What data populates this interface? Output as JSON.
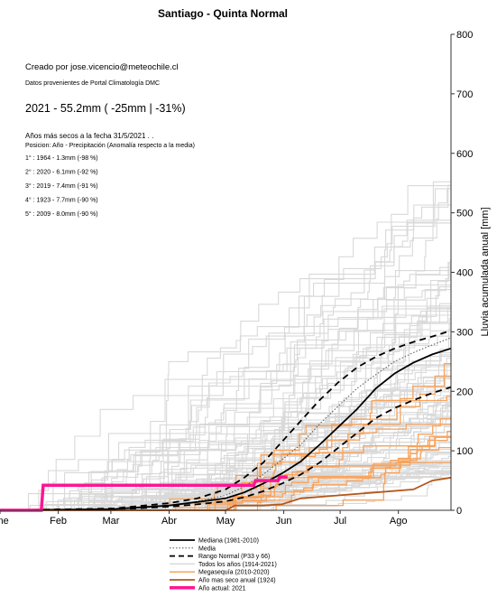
{
  "title": "Santiago - Quinta Normal",
  "credit": "Creado por jose.vicencio@meteochile.cl",
  "source": "Datos provenientes de Portal Climatología DMC",
  "headline": "2021 - 55.2mm ( -25mm |  -31%)",
  "ranking": {
    "heading": "Años más secos a la fecha 31/5/2021 . .",
    "subheading": "Posicion: Año - Precipitación (Anomalía respecto a la media)",
    "entries": [
      "1° : 1964 - 1.3mm (-98 %)",
      "2° : 2020 - 6.1mm (-92 %)",
      "3° : 2019 - 7.4mm (-91 %)",
      "4° : 1923 - 7.7mm (-90 %)",
      "5° : 2009 - 8.0mm (-90 %)"
    ]
  },
  "colors": {
    "median": "#000000",
    "mean": "#555555",
    "normal_range": "#000000",
    "all_years": "#d9d9d9",
    "megadrought": "#f7a35c",
    "driest_year": "#b5571a",
    "current_year": "#ff1493"
  },
  "chart_data": {
    "type": "line",
    "xlabel": "",
    "ylabel": "Lluvia acumulada anual [mm]",
    "x_ticks": [
      "Ene",
      "Feb",
      "Mar",
      "Abr",
      "May",
      "Jun",
      "Jul",
      "Ago"
    ],
    "x_tick_days": [
      0,
      31,
      59,
      90,
      120,
      151,
      181,
      212
    ],
    "xlim": [
      0,
      240
    ],
    "ylim": [
      0,
      800
    ],
    "y_ticks": [
      0,
      100,
      200,
      300,
      400,
      500,
      600,
      700,
      800
    ],
    "y_axis_position": "right",
    "grid": false,
    "legend_position": "bottom",
    "legend": [
      {
        "key": "median",
        "label": "Mediana (1981-2010)"
      },
      {
        "key": "mean",
        "label": "Media"
      },
      {
        "key": "normal_range",
        "label": "Rango Normal (P33 y 66)"
      },
      {
        "key": "all_years",
        "label": "Todos los años (1914-2021)"
      },
      {
        "key": "megadrought",
        "label": "Megasequía (2010-2020)"
      },
      {
        "key": "driest_year",
        "label": "Año mas seco anual (1924)"
      },
      {
        "key": "current_year",
        "label": "Año actual: 2021"
      }
    ],
    "series": [
      {
        "key": "median",
        "x": [
          0,
          60,
          90,
          105,
          120,
          130,
          140,
          150,
          160,
          170,
          180,
          190,
          200,
          210,
          220,
          230,
          240
        ],
        "y": [
          0,
          2,
          8,
          14,
          20,
          30,
          45,
          62,
          82,
          110,
          140,
          170,
          205,
          230,
          248,
          262,
          272
        ]
      },
      {
        "key": "mean",
        "x": [
          0,
          60,
          90,
          105,
          120,
          130,
          140,
          150,
          160,
          170,
          180,
          190,
          200,
          210,
          220,
          230,
          240
        ],
        "y": [
          0,
          2,
          8,
          15,
          25,
          40,
          60,
          85,
          110,
          145,
          175,
          205,
          228,
          250,
          265,
          278,
          290
        ]
      },
      {
        "key": "normal_range_p66",
        "x": [
          0,
          60,
          90,
          105,
          120,
          130,
          140,
          150,
          160,
          170,
          180,
          190,
          200,
          210,
          220,
          230,
          240
        ],
        "y": [
          0,
          3,
          12,
          20,
          35,
          55,
          80,
          115,
          150,
          185,
          215,
          240,
          258,
          272,
          283,
          292,
          302
        ]
      },
      {
        "key": "normal_range_p33",
        "x": [
          0,
          60,
          90,
          105,
          120,
          130,
          140,
          150,
          160,
          170,
          180,
          190,
          200,
          210,
          220,
          230,
          240
        ],
        "y": [
          0,
          1,
          6,
          10,
          15,
          22,
          32,
          45,
          60,
          80,
          105,
          130,
          155,
          172,
          185,
          197,
          207
        ]
      },
      {
        "key": "driest_year_1924",
        "x": [
          0,
          110,
          120,
          125,
          140,
          150,
          160,
          180,
          200,
          220,
          230,
          240
        ],
        "y": [
          0,
          0,
          0,
          8,
          8,
          10,
          20,
          25,
          30,
          35,
          50,
          55
        ]
      },
      {
        "key": "current_year_2021",
        "x": [
          0,
          22,
          23,
          110,
          111,
          135,
          136,
          148,
          149,
          153
        ],
        "y": [
          0,
          0,
          42,
          42,
          42,
          42,
          50,
          50,
          56,
          56
        ]
      }
    ]
  }
}
